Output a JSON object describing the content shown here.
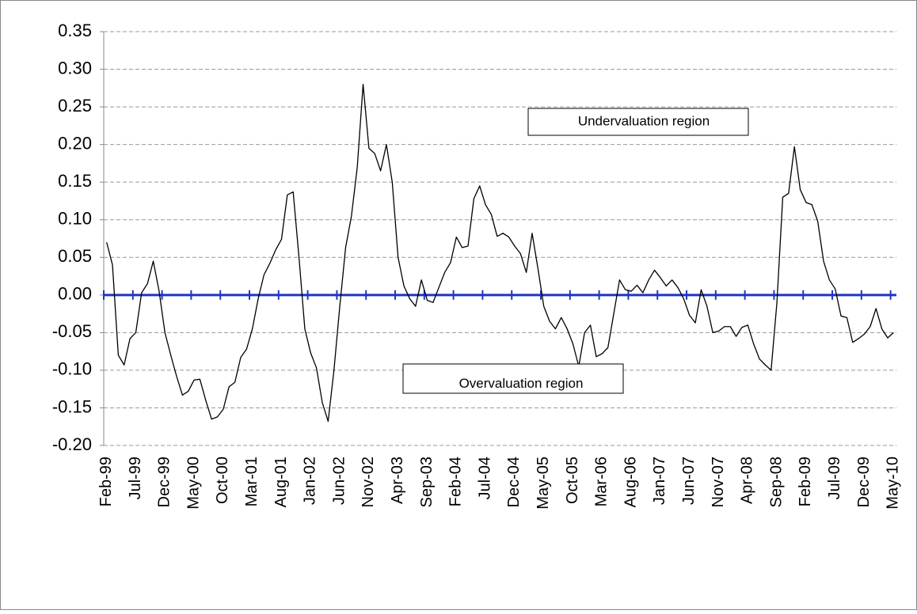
{
  "chart_data": {
    "type": "line",
    "categories": [
      "Feb-99",
      null,
      null,
      null,
      null,
      "Jul-99",
      null,
      null,
      null,
      null,
      "Dec-99",
      null,
      null,
      null,
      null,
      "May-00",
      null,
      null,
      null,
      null,
      "Oct-00",
      null,
      null,
      null,
      null,
      "Mar-01",
      null,
      null,
      null,
      null,
      "Aug-01",
      null,
      null,
      null,
      null,
      "Jan-02",
      null,
      null,
      null,
      null,
      "Jun-02",
      null,
      null,
      null,
      null,
      "Nov-02",
      null,
      null,
      null,
      null,
      "Apr-03",
      null,
      null,
      null,
      null,
      "Sep-03",
      null,
      null,
      null,
      null,
      "Feb-04",
      null,
      null,
      null,
      null,
      "Jul-04",
      null,
      null,
      null,
      null,
      "Dec-04",
      null,
      null,
      null,
      null,
      "May-05",
      null,
      null,
      null,
      null,
      "Oct-05",
      null,
      null,
      null,
      null,
      "Mar-06",
      null,
      null,
      null,
      null,
      "Aug-06",
      null,
      null,
      null,
      null,
      "Jan-07",
      null,
      null,
      null,
      null,
      "Jun-07",
      null,
      null,
      null,
      null,
      "Nov-07",
      null,
      null,
      null,
      null,
      "Apr-08",
      null,
      null,
      null,
      null,
      "Sep-08",
      null,
      null,
      null,
      null,
      "Feb-09",
      null,
      null,
      null,
      null,
      "Jul-09",
      null,
      null,
      null,
      null,
      "Dec-09",
      null,
      null,
      null,
      null,
      "May-10"
    ],
    "values": [
      0.07,
      0.04,
      -0.08,
      -0.093,
      -0.058,
      -0.05,
      0.003,
      0.015,
      0.045,
      0.005,
      -0.05,
      -0.08,
      -0.108,
      -0.133,
      -0.128,
      -0.113,
      -0.112,
      -0.14,
      -0.165,
      -0.162,
      -0.152,
      -0.122,
      -0.116,
      -0.083,
      -0.072,
      -0.045,
      -0.005,
      0.027,
      0.042,
      0.06,
      0.074,
      0.133,
      0.137,
      0.05,
      -0.045,
      -0.077,
      -0.097,
      -0.143,
      -0.168,
      -0.1,
      -0.015,
      0.063,
      0.105,
      0.17,
      0.28,
      0.195,
      0.188,
      0.165,
      0.2,
      0.15,
      0.05,
      0.012,
      -0.005,
      -0.015,
      0.02,
      -0.007,
      -0.01,
      0.01,
      0.03,
      0.043,
      0.077,
      0.063,
      0.065,
      0.128,
      0.145,
      0.12,
      0.107,
      0.078,
      0.082,
      0.077,
      0.065,
      0.055,
      0.03,
      0.082,
      0.035,
      -0.015,
      -0.035,
      -0.045,
      -0.03,
      -0.045,
      -0.065,
      -0.095,
      -0.05,
      -0.04,
      -0.082,
      -0.078,
      -0.07,
      -0.025,
      0.02,
      0.007,
      0.005,
      0.013,
      0.003,
      0.02,
      0.033,
      0.023,
      0.012,
      0.02,
      0.01,
      -0.005,
      -0.027,
      -0.037,
      0.007,
      -0.015,
      -0.05,
      -0.048,
      -0.042,
      -0.042,
      -0.055,
      -0.043,
      -0.04,
      -0.065,
      -0.085,
      -0.093,
      -0.1,
      -0.01,
      0.13,
      0.135,
      0.197,
      0.14,
      0.123,
      0.12,
      0.098,
      0.045,
      0.02,
      0.008,
      -0.028,
      -0.03,
      -0.063,
      -0.058,
      -0.052,
      -0.042,
      -0.018,
      -0.045,
      -0.057,
      -0.05
    ],
    "color": "#000000",
    "zero_axis_color": "#1f35c4",
    "ylim": [
      -0.2,
      0.35
    ],
    "yticks": [
      {
        "value": -0.2,
        "label": "-0.20"
      },
      -0.15,
      {
        "value": -0.1,
        "label": "-0.10"
      },
      -0.05,
      {
        "value": 0,
        "label": "0.00"
      },
      0.05,
      {
        "value": 0.1,
        "label": "0.10"
      },
      0.15,
      {
        "value": 0.2,
        "label": "0.20"
      },
      0.25,
      {
        "value": 0.3,
        "label": "0.30"
      },
      0.35
    ],
    "grid": true,
    "annotations": [
      "Undervaluation region",
      "Overvaluation region"
    ]
  }
}
